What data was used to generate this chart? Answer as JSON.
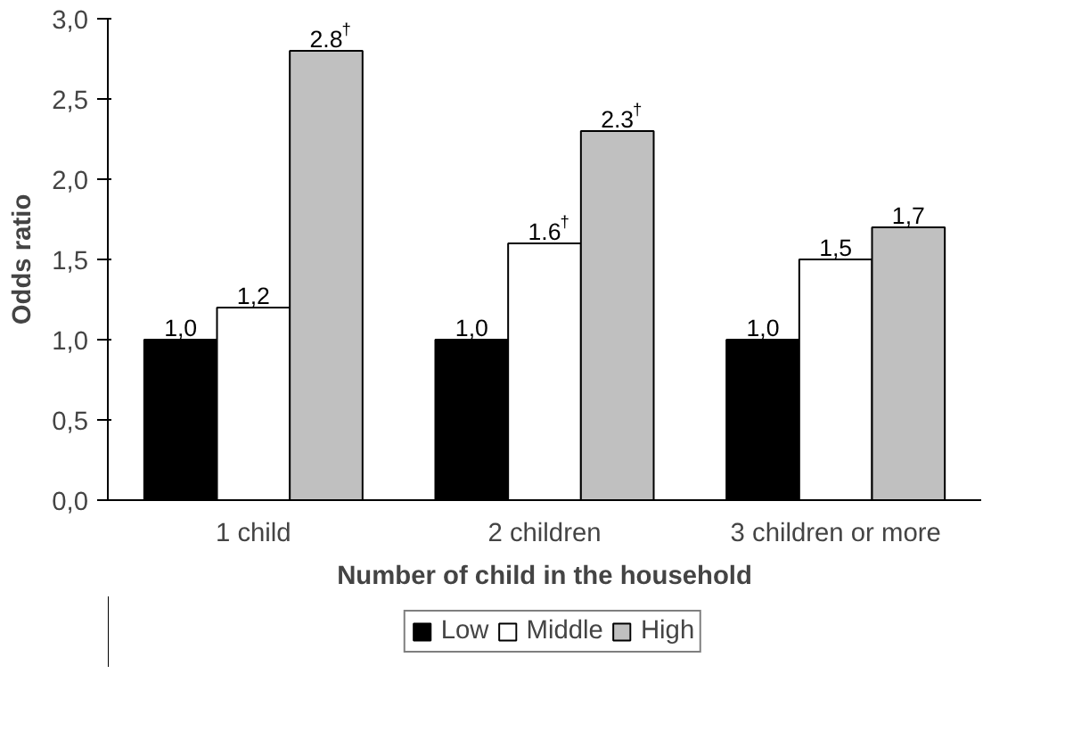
{
  "chart_data": {
    "type": "bar",
    "xlabel": "Number of child in the household",
    "ylabel": "Odds ratio",
    "categories": [
      "1 child",
      "2 children",
      "3 children or more"
    ],
    "series": [
      {
        "name": "Low",
        "color": "#000000",
        "values": [
          1.0,
          1.0,
          1.0
        ],
        "value_labels": [
          "1,0",
          "1,0",
          "1,0"
        ]
      },
      {
        "name": "Middle",
        "color": "#ffffff",
        "values": [
          1.2,
          1.6,
          1.5
        ],
        "value_labels": [
          "1,2",
          "1.6$^{†}$",
          "1,5"
        ]
      },
      {
        "name": "High",
        "color": "#c0c0c0",
        "values": [
          2.8,
          2.3,
          1.7
        ],
        "value_labels": [
          "2.8$^{†}$",
          "2.3$^{†}$",
          "1,7"
        ]
      }
    ],
    "ylim": [
      0,
      3
    ],
    "yticks": [
      {
        "value": 0,
        "label": "0,0"
      },
      {
        "value": 0.5,
        "label": "0,5"
      },
      {
        "value": 1,
        "label": "1,0"
      },
      {
        "value": 1.5,
        "label": "1,5"
      },
      {
        "value": 2,
        "label": "2,0"
      },
      {
        "value": 2.5,
        "label": "2,5"
      },
      {
        "value": 3,
        "label": "3,0"
      }
    ],
    "grid": false,
    "legend": "bottom"
  }
}
